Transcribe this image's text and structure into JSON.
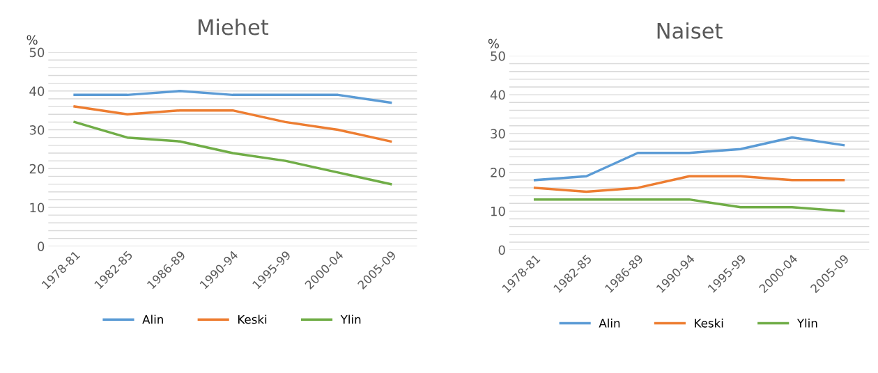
{
  "chart_data": [
    {
      "type": "line",
      "title": "Miehet",
      "ylabel": "%",
      "categories": [
        "1978-81",
        "1982-85",
        "1986-89",
        "1990-94",
        "1995-99",
        "2000-04",
        "2005-09"
      ],
      "series": [
        {
          "name": "Alin",
          "color": "#5b9bd5",
          "values": [
            39,
            39,
            40,
            39,
            39,
            39,
            37
          ]
        },
        {
          "name": "Keski",
          "color": "#ed7d31",
          "values": [
            36,
            34,
            35,
            35,
            32,
            30,
            27
          ]
        },
        {
          "name": "Ylin",
          "color": "#70ad47",
          "values": [
            32,
            28,
            27,
            24,
            22,
            19,
            16
          ]
        }
      ],
      "ylim": [
        0,
        50
      ],
      "yticks": [
        0,
        {
          "value": 2,
          "label": null
        },
        {
          "value": 4,
          "label": null
        },
        {
          "value": 6,
          "label": null
        },
        {
          "value": 8,
          "label": null
        },
        10,
        {
          "value": 12,
          "label": null
        },
        {
          "value": 14,
          "label": null
        },
        {
          "value": 16,
          "label": null
        },
        {
          "value": 18,
          "label": null
        },
        20,
        {
          "value": 22,
          "label": null
        },
        {
          "value": 24,
          "label": null
        },
        {
          "value": 26,
          "label": null
        },
        {
          "value": 28,
          "label": null
        },
        30,
        {
          "value": 32,
          "label": null
        },
        {
          "value": 34,
          "label": null
        },
        {
          "value": 36,
          "label": null
        },
        {
          "value": 38,
          "label": null
        },
        40,
        {
          "value": 42,
          "label": null
        },
        {
          "value": 44,
          "label": null
        },
        {
          "value": 46,
          "label": null
        },
        {
          "value": 48,
          "label": null
        },
        50
      ],
      "grid": "y",
      "legend": "bottom",
      "marker": "none",
      "line_style": "solid"
    },
    {
      "type": "line",
      "title": "Naiset",
      "ylabel": "%",
      "categories": [
        "1978-81",
        "1982-85",
        "1986-89",
        "1990-94",
        "1995-99",
        "2000-04",
        "2005-09"
      ],
      "series": [
        {
          "name": "Alin",
          "color": "#5b9bd5",
          "values": [
            18,
            19,
            25,
            25,
            26,
            29,
            27
          ]
        },
        {
          "name": "Keski",
          "color": "#ed7d31",
          "values": [
            16,
            15,
            16,
            19,
            19,
            18,
            18
          ]
        },
        {
          "name": "Ylin",
          "color": "#70ad47",
          "values": [
            13,
            13,
            13,
            13,
            11,
            11,
            10
          ]
        }
      ],
      "ylim": [
        0,
        50
      ],
      "yticks": [
        0,
        {
          "value": 2,
          "label": null
        },
        {
          "value": 4,
          "label": null
        },
        {
          "value": 6,
          "label": null
        },
        {
          "value": 8,
          "label": null
        },
        10,
        {
          "value": 12,
          "label": null
        },
        {
          "value": 14,
          "label": null
        },
        {
          "value": 16,
          "label": null
        },
        {
          "value": 18,
          "label": null
        },
        20,
        {
          "value": 22,
          "label": null
        },
        {
          "value": 24,
          "label": null
        },
        {
          "value": 26,
          "label": null
        },
        {
          "value": 28,
          "label": null
        },
        30,
        {
          "value": 32,
          "label": null
        },
        {
          "value": 34,
          "label": null
        },
        {
          "value": 36,
          "label": null
        },
        {
          "value": 38,
          "label": null
        },
        40,
        {
          "value": 42,
          "label": null
        },
        {
          "value": 44,
          "label": null
        },
        {
          "value": 46,
          "label": null
        },
        {
          "value": 48,
          "label": null
        },
        50
      ],
      "grid": "y",
      "legend": "bottom",
      "marker": "none",
      "line_style": "solid"
    }
  ]
}
